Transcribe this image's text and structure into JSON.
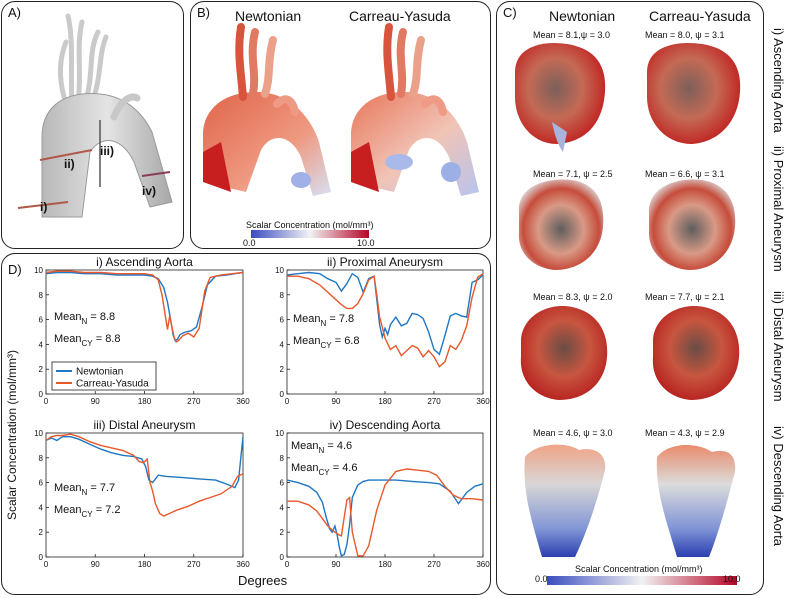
{
  "panel_a": {
    "label": "A)",
    "markers": [
      "i)",
      "ii)",
      "iii)",
      "iv)"
    ]
  },
  "panel_b": {
    "label": "B)",
    "col_newtonian": "Newtonian",
    "col_carreau": "Carreau-Yasuda",
    "colorbar_title": "Scalar Concentration (mol/mm³)",
    "colorbar_min": "0.0",
    "colorbar_max": "10.0"
  },
  "panel_c": {
    "label": "C)",
    "col_newtonian": "Newtonian",
    "col_carreau": "Carreau-Yasuda",
    "rows": [
      {
        "side_label": "i) Ascending Aorta",
        "newtonian_stat": "Mean = 8.1,ψ = 3.0",
        "carreau_stat": "Mean = 8.0, ψ = 3.1"
      },
      {
        "side_label": "ii) Proximal Aneurysm",
        "newtonian_stat": "Mean = 7.1, ψ = 2.5",
        "carreau_stat": "Mean = 6.6, ψ = 3.1"
      },
      {
        "side_label": "iii) Distal Aneurysm",
        "newtonian_stat": "Mean = 8.3, ψ = 2.0",
        "carreau_stat": "Mean = 7.7, ψ = 2.1"
      },
      {
        "side_label": "iv) Descending Aorta",
        "newtonian_stat": "Mean = 4.6, ψ = 3.0",
        "carreau_stat": "Mean = 4.3, ψ = 2.9"
      }
    ],
    "colorbar_title": "Scalar Concentration (mol/mm³)",
    "colorbar_min": "0.0",
    "colorbar_max": "10.0"
  },
  "panel_d": {
    "label": "D)",
    "ylabel": "Scalar Concentration (mol/mm³)",
    "xlabel": "Degrees",
    "legend": [
      "Newtonian",
      "Carreau-Yasuda"
    ]
  },
  "colors": {
    "newtonian": "#1f77c4",
    "carreau_yasuda": "#e8582a",
    "colormap_low": "#3b4cc0",
    "colormap_mid": "#f2f2f2",
    "colormap_high": "#b40426"
  },
  "chart_data": [
    {
      "type": "line",
      "title": "i) Ascending Aorta",
      "xlim": [
        0,
        360
      ],
      "ylim": [
        0,
        10
      ],
      "xticks": [
        "0",
        "90",
        "180",
        "270",
        "360"
      ],
      "yticks": [
        "0",
        "2",
        "4",
        "6",
        "8",
        "10"
      ],
      "stat_n_label": "Mean",
      "stat_n_sub": "N",
      "stat_n_value": "= 8.8",
      "stat_cy_label": "Mean",
      "stat_cy_sub": "CY",
      "stat_cy_value": "= 8.8",
      "series": [
        {
          "name": "Newtonian",
          "x": [
            0,
            20,
            45,
            70,
            100,
            130,
            160,
            180,
            195,
            205,
            215,
            222,
            228,
            232,
            236,
            240,
            245,
            255,
            265,
            275,
            285,
            295,
            310,
            330,
            345,
            360
          ],
          "y": [
            9.7,
            9.8,
            9.8,
            9.7,
            9.7,
            9.6,
            9.6,
            9.6,
            9.5,
            9.3,
            8.6,
            7.4,
            5.9,
            4.8,
            4.3,
            4.4,
            4.8,
            5.0,
            5.1,
            5.4,
            7.0,
            8.8,
            9.5,
            9.6,
            9.7,
            9.8
          ]
        },
        {
          "name": "Carreau-Yasuda",
          "x": [
            0,
            20,
            45,
            70,
            100,
            130,
            160,
            180,
            195,
            205,
            212,
            218,
            222,
            226,
            230,
            234,
            238,
            242,
            250,
            260,
            270,
            280,
            290,
            300,
            320,
            340,
            360
          ],
          "y": [
            9.8,
            9.9,
            9.9,
            9.8,
            9.8,
            9.7,
            9.7,
            9.7,
            9.6,
            9.2,
            8.0,
            6.3,
            5.2,
            6.3,
            5.4,
            4.6,
            4.2,
            4.3,
            4.7,
            4.9,
            4.6,
            5.3,
            8.3,
            9.4,
            9.6,
            9.7,
            9.8
          ]
        }
      ]
    },
    {
      "type": "line",
      "title": "ii) Proximal Aneurysm",
      "xlim": [
        0,
        360
      ],
      "ylim": [
        0,
        10
      ],
      "xticks": [
        "0",
        "90",
        "180",
        "270",
        "360"
      ],
      "yticks": [
        "0",
        "2",
        "4",
        "6",
        "8",
        "10"
      ],
      "stat_n_label": "Mean",
      "stat_n_sub": "N",
      "stat_n_value": "= 7.8",
      "stat_cy_label": "Mean",
      "stat_cy_sub": "CY",
      "stat_cy_value": "= 6.8",
      "series": [
        {
          "name": "Newtonian",
          "x": [
            0,
            20,
            40,
            60,
            75,
            90,
            100,
            110,
            120,
            130,
            140,
            150,
            160,
            165,
            170,
            175,
            180,
            185,
            190,
            200,
            210,
            220,
            230,
            240,
            250,
            260,
            270,
            280,
            290,
            300,
            310,
            320,
            330,
            340,
            350,
            360
          ],
          "y": [
            9.6,
            9.7,
            9.8,
            9.7,
            9.3,
            9.0,
            8.3,
            8.9,
            9.7,
            9.4,
            8.2,
            9.3,
            9.5,
            7.6,
            5.6,
            4.6,
            5.3,
            4.8,
            5.6,
            6.2,
            5.5,
            5.7,
            6.5,
            6.4,
            6.1,
            5.0,
            3.6,
            3.2,
            4.7,
            6.3,
            6.5,
            6.3,
            6.2,
            9.0,
            9.2,
            9.6
          ]
        },
        {
          "name": "Carreau-Yasuda",
          "x": [
            0,
            20,
            40,
            60,
            80,
            100,
            110,
            120,
            130,
            140,
            150,
            160,
            165,
            170,
            175,
            180,
            190,
            200,
            210,
            220,
            230,
            240,
            250,
            260,
            270,
            280,
            290,
            300,
            310,
            320,
            330,
            340,
            350,
            360
          ],
          "y": [
            9.5,
            9.5,
            9.3,
            8.8,
            8.0,
            7.2,
            6.9,
            6.9,
            7.3,
            8.1,
            9.2,
            9.5,
            8.0,
            6.2,
            5.4,
            4.5,
            3.6,
            3.9,
            3.1,
            3.5,
            3.9,
            3.7,
            3.0,
            3.5,
            3.0,
            2.2,
            2.6,
            3.9,
            3.6,
            4.3,
            5.5,
            7.8,
            9.4,
            9.7
          ]
        }
      ]
    },
    {
      "type": "line",
      "title": "iii) Distal Aneurysm",
      "xlim": [
        0,
        360
      ],
      "ylim": [
        0,
        10
      ],
      "xticks": [
        "0",
        "90",
        "180",
        "270",
        "360"
      ],
      "yticks": [
        "0",
        "2",
        "4",
        "6",
        "8",
        "10"
      ],
      "stat_n_label": "Mean",
      "stat_n_sub": "N",
      "stat_n_value": " = 7.7",
      "stat_cy_label": "Mean",
      "stat_cy_sub": "CY",
      "stat_cy_value": " = 7.2",
      "series": [
        {
          "name": "Newtonian",
          "x": [
            0,
            10,
            20,
            30,
            45,
            60,
            80,
            100,
            120,
            140,
            160,
            175,
            182,
            188,
            195,
            205,
            220,
            250,
            280,
            310,
            335,
            345,
            352,
            356,
            360
          ],
          "y": [
            9.4,
            9.6,
            9.4,
            9.7,
            9.7,
            9.5,
            9.1,
            8.7,
            8.4,
            8.2,
            8.1,
            7.9,
            7.3,
            6.2,
            6.0,
            6.6,
            6.5,
            6.4,
            6.3,
            6.2,
            5.8,
            5.6,
            6.2,
            8.0,
            9.7
          ]
        },
        {
          "name": "Carreau-Yasuda",
          "x": [
            0,
            10,
            20,
            30,
            45,
            60,
            80,
            100,
            120,
            140,
            160,
            170,
            178,
            185,
            190,
            195,
            200,
            208,
            215,
            225,
            240,
            260,
            280,
            300,
            320,
            340,
            350,
            360
          ],
          "y": [
            9.4,
            9.7,
            9.8,
            9.8,
            9.9,
            9.7,
            9.3,
            9.0,
            8.8,
            8.6,
            8.2,
            7.7,
            7.6,
            7.9,
            6.0,
            5.3,
            4.3,
            3.5,
            3.3,
            3.5,
            3.8,
            4.1,
            4.5,
            4.8,
            5.1,
            5.7,
            6.5,
            6.7
          ]
        }
      ]
    },
    {
      "type": "line",
      "title": "iv) Descending Aorta",
      "xlim": [
        0,
        360
      ],
      "ylim": [
        0,
        10
      ],
      "xticks": [
        "0",
        "90",
        "180",
        "270",
        "360"
      ],
      "yticks": [
        "0",
        "2",
        "4",
        "6",
        "8",
        "10"
      ],
      "stat_n_label": "Mean",
      "stat_n_sub": "N",
      "stat_n_value": "= 4.6",
      "stat_cy_label": "Mean",
      "stat_cy_sub": "CY",
      "stat_cy_value": "= 4.6",
      "series": [
        {
          "name": "Newtonian",
          "x": [
            0,
            20,
            40,
            55,
            65,
            72,
            78,
            83,
            88,
            92,
            96,
            100,
            105,
            110,
            115,
            120,
            130,
            140,
            150,
            170,
            200,
            230,
            260,
            280,
            300,
            315,
            330,
            345,
            360
          ],
          "y": [
            6.2,
            6.0,
            5.7,
            5.2,
            4.4,
            3.2,
            2.3,
            2.0,
            2.5,
            1.8,
            0.8,
            0.1,
            0.2,
            1.0,
            2.6,
            4.8,
            5.8,
            6.1,
            6.2,
            6.2,
            6.2,
            6.1,
            6.0,
            5.9,
            5.3,
            4.3,
            5.2,
            5.7,
            5.9
          ]
        },
        {
          "name": "Carreau-Yasuda",
          "x": [
            0,
            20,
            40,
            55,
            65,
            75,
            85,
            95,
            100,
            105,
            110,
            115,
            120,
            130,
            140,
            150,
            165,
            180,
            200,
            220,
            240,
            260,
            275,
            290,
            305,
            320,
            340,
            360
          ],
          "y": [
            4.5,
            4.5,
            4.2,
            3.7,
            3.1,
            2.5,
            2.1,
            1.8,
            1.7,
            3.2,
            4.6,
            4.8,
            2.0,
            0.1,
            0.1,
            0.9,
            3.8,
            5.8,
            6.9,
            7.1,
            7.0,
            6.9,
            6.6,
            5.7,
            5.0,
            4.7,
            4.7,
            4.6
          ]
        }
      ]
    }
  ]
}
